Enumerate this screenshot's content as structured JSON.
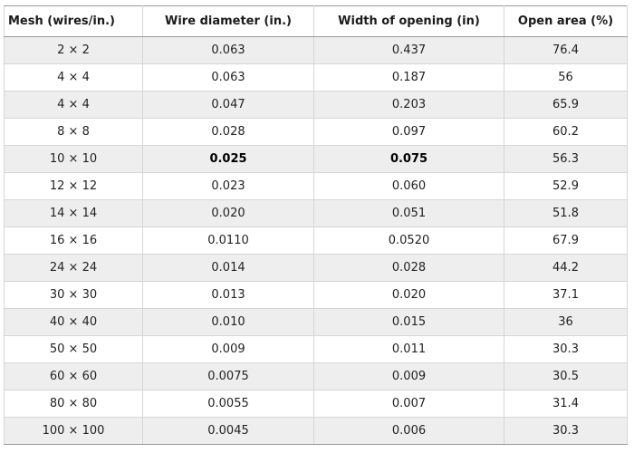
{
  "table": {
    "headers": [
      "Mesh (wires/in.)",
      "Wire diameter (in.)",
      "Width of opening (in)",
      "Open area (%)"
    ],
    "rows": [
      {
        "mesh": "2 × 2",
        "wire_diameter": "0.063",
        "opening": "0.437",
        "open_area": "76.4"
      },
      {
        "mesh": "4 × 4",
        "wire_diameter": "0.063",
        "opening": "0.187",
        "open_area": "56"
      },
      {
        "mesh": "4 × 4",
        "wire_diameter": "0.047",
        "opening": "0.203",
        "open_area": "65.9"
      },
      {
        "mesh": "8 × 8",
        "wire_diameter": "0.028",
        "opening": "0.097",
        "open_area": "60.2"
      },
      {
        "mesh": "10 × 10",
        "wire_diameter": "0.025",
        "opening": "0.075",
        "open_area": "56.3"
      },
      {
        "mesh": "12 × 12",
        "wire_diameter": "0.023",
        "opening": "0.060",
        "open_area": "52.9"
      },
      {
        "mesh": "14 × 14",
        "wire_diameter": "0.020",
        "opening": "0.051",
        "open_area": "51.8"
      },
      {
        "mesh": "16 × 16",
        "wire_diameter": "0.0110",
        "opening": "0.0520",
        "open_area": "67.9"
      },
      {
        "mesh": "24 × 24",
        "wire_diameter": "0.014",
        "opening": "0.028",
        "open_area": "44.2"
      },
      {
        "mesh": "30 × 30",
        "wire_diameter": "0.013",
        "opening": "0.020",
        "open_area": "37.1"
      },
      {
        "mesh": "40 × 40",
        "wire_diameter": "0.010",
        "opening": "0.015",
        "open_area": "36"
      },
      {
        "mesh": "50 × 50",
        "wire_diameter": "0.009",
        "opening": "0.011",
        "open_area": "30.3"
      },
      {
        "mesh": "60 × 60",
        "wire_diameter": "0.0075",
        "opening": "0.009",
        "open_area": "30.5"
      },
      {
        "mesh": "80 × 80",
        "wire_diameter": "0.0055",
        "opening": "0.007",
        "open_area": "31.4"
      },
      {
        "mesh": "100 × 100",
        "wire_diameter": "0.0045",
        "opening": "0.006",
        "open_area": "30.3"
      }
    ]
  }
}
